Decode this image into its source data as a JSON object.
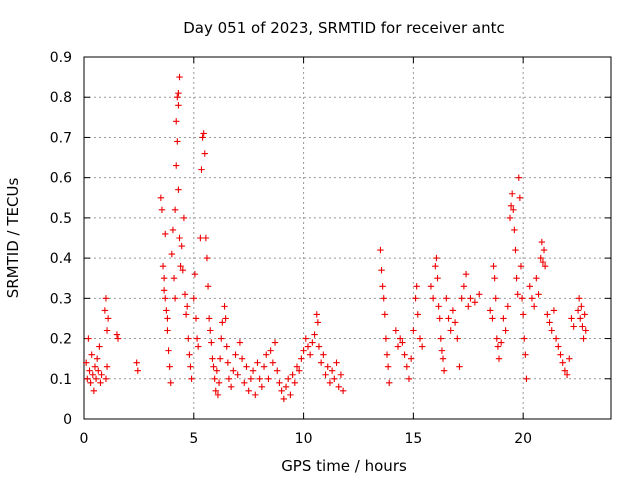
{
  "chart_data": {
    "type": "scatter",
    "title": "Day 051 of 2023, SRMTID for receiver antc",
    "xlabel": "GPS time / hours",
    "ylabel": "SRMTID / TECUs",
    "xlim": [
      0,
      24
    ],
    "ylim": [
      0,
      0.9
    ],
    "x_ticks": [
      0,
      5,
      10,
      15,
      20
    ],
    "y_ticks": [
      0,
      0.1,
      0.2,
      0.3,
      0.4,
      0.5,
      0.6,
      0.7,
      0.8,
      0.9
    ],
    "x_tick_labels": [
      "0",
      "5",
      "10",
      "15",
      "20"
    ],
    "y_tick_labels": [
      "0",
      "0.1",
      "0.2",
      "0.3",
      "0.4",
      "0.5",
      "0.6",
      "0.7",
      "0.8",
      "0.9"
    ],
    "grid": true,
    "marker": "+",
    "color": "#ee0000",
    "series": [
      {
        "name": "SRMTID",
        "points": [
          [
            0.1,
            0.14
          ],
          [
            0.15,
            0.1
          ],
          [
            0.2,
            0.2
          ],
          [
            0.25,
            0.12
          ],
          [
            0.3,
            0.09
          ],
          [
            0.35,
            0.16
          ],
          [
            0.4,
            0.11
          ],
          [
            0.45,
            0.07
          ],
          [
            0.5,
            0.13
          ],
          [
            0.55,
            0.1
          ],
          [
            0.6,
            0.15
          ],
          [
            0.65,
            0.12
          ],
          [
            0.7,
            0.18
          ],
          [
            0.75,
            0.09
          ],
          [
            0.8,
            0.11
          ],
          [
            0.95,
            0.27
          ],
          [
            1.0,
            0.3
          ],
          [
            1.05,
            0.22
          ],
          [
            1.1,
            0.25
          ],
          [
            1.0,
            0.1
          ],
          [
            1.05,
            0.13
          ],
          [
            1.5,
            0.21
          ],
          [
            1.55,
            0.2
          ],
          [
            2.4,
            0.14
          ],
          [
            2.45,
            0.12
          ],
          [
            3.5,
            0.55
          ],
          [
            3.55,
            0.52
          ],
          [
            3.6,
            0.38
          ],
          [
            3.65,
            0.35
          ],
          [
            3.7,
            0.3
          ],
          [
            3.75,
            0.27
          ],
          [
            3.8,
            0.22
          ],
          [
            3.85,
            0.17
          ],
          [
            3.9,
            0.13
          ],
          [
            3.95,
            0.09
          ],
          [
            3.7,
            0.46
          ],
          [
            3.65,
            0.32
          ],
          [
            3.8,
            0.25
          ],
          [
            4.0,
            0.41
          ],
          [
            4.05,
            0.47
          ],
          [
            4.1,
            0.35
          ],
          [
            4.15,
            0.3
          ],
          [
            4.2,
            0.74
          ],
          [
            4.25,
            0.8
          ],
          [
            4.3,
            0.78
          ],
          [
            4.35,
            0.85
          ],
          [
            4.3,
            0.81
          ],
          [
            4.25,
            0.69
          ],
          [
            4.2,
            0.63
          ],
          [
            4.15,
            0.52
          ],
          [
            4.3,
            0.57
          ],
          [
            4.35,
            0.45
          ],
          [
            4.4,
            0.38
          ],
          [
            4.45,
            0.43
          ],
          [
            4.5,
            0.37
          ],
          [
            4.55,
            0.5
          ],
          [
            4.6,
            0.31
          ],
          [
            4.65,
            0.26
          ],
          [
            4.7,
            0.28
          ],
          [
            4.75,
            0.2
          ],
          [
            4.8,
            0.16
          ],
          [
            4.85,
            0.13
          ],
          [
            4.9,
            0.1
          ],
          [
            5.0,
            0.3
          ],
          [
            5.05,
            0.36
          ],
          [
            5.1,
            0.25
          ],
          [
            5.15,
            0.2
          ],
          [
            5.2,
            0.18
          ],
          [
            5.3,
            0.45
          ],
          [
            5.35,
            0.62
          ],
          [
            5.4,
            0.7
          ],
          [
            5.45,
            0.71
          ],
          [
            5.5,
            0.66
          ],
          [
            5.55,
            0.45
          ],
          [
            5.6,
            0.4
          ],
          [
            5.65,
            0.33
          ],
          [
            5.7,
            0.25
          ],
          [
            5.75,
            0.22
          ],
          [
            5.8,
            0.19
          ],
          [
            5.85,
            0.15
          ],
          [
            5.9,
            0.13
          ],
          [
            5.95,
            0.1
          ],
          [
            6.0,
            0.07
          ],
          [
            6.05,
            0.12
          ],
          [
            6.1,
            0.06
          ],
          [
            6.15,
            0.09
          ],
          [
            6.2,
            0.15
          ],
          [
            6.25,
            0.2
          ],
          [
            6.3,
            0.24
          ],
          [
            6.4,
            0.28
          ],
          [
            6.45,
            0.25
          ],
          [
            6.5,
            0.18
          ],
          [
            6.55,
            0.14
          ],
          [
            6.6,
            0.1
          ],
          [
            6.7,
            0.08
          ],
          [
            6.8,
            0.12
          ],
          [
            6.9,
            0.16
          ],
          [
            7.0,
            0.11
          ],
          [
            7.1,
            0.19
          ],
          [
            7.2,
            0.15
          ],
          [
            7.3,
            0.09
          ],
          [
            7.4,
            0.13
          ],
          [
            7.5,
            0.07
          ],
          [
            7.6,
            0.1
          ],
          [
            7.7,
            0.12
          ],
          [
            7.8,
            0.06
          ],
          [
            7.9,
            0.14
          ],
          [
            8.0,
            0.1
          ],
          [
            8.1,
            0.08
          ],
          [
            8.2,
            0.13
          ],
          [
            8.3,
            0.16
          ],
          [
            8.4,
            0.1
          ],
          [
            8.5,
            0.17
          ],
          [
            8.6,
            0.14
          ],
          [
            8.7,
            0.19
          ],
          [
            8.8,
            0.12
          ],
          [
            8.9,
            0.09
          ],
          [
            9.0,
            0.07
          ],
          [
            9.1,
            0.05
          ],
          [
            9.2,
            0.08
          ],
          [
            9.3,
            0.1
          ],
          [
            9.4,
            0.06
          ],
          [
            9.5,
            0.11
          ],
          [
            9.6,
            0.09
          ],
          [
            9.7,
            0.13
          ],
          [
            9.8,
            0.12
          ],
          [
            9.9,
            0.15
          ],
          [
            10.0,
            0.17
          ],
          [
            10.1,
            0.2
          ],
          [
            10.2,
            0.18
          ],
          [
            10.3,
            0.16
          ],
          [
            10.4,
            0.19
          ],
          [
            10.5,
            0.21
          ],
          [
            10.6,
            0.26
          ],
          [
            10.65,
            0.24
          ],
          [
            10.7,
            0.18
          ],
          [
            10.8,
            0.14
          ],
          [
            10.9,
            0.16
          ],
          [
            11.0,
            0.11
          ],
          [
            11.1,
            0.13
          ],
          [
            11.2,
            0.09
          ],
          [
            11.3,
            0.12
          ],
          [
            11.4,
            0.1
          ],
          [
            11.5,
            0.14
          ],
          [
            11.6,
            0.08
          ],
          [
            11.7,
            0.11
          ],
          [
            11.8,
            0.07
          ],
          [
            13.5,
            0.42
          ],
          [
            13.55,
            0.37
          ],
          [
            13.6,
            0.33
          ],
          [
            13.65,
            0.3
          ],
          [
            13.7,
            0.26
          ],
          [
            13.75,
            0.2
          ],
          [
            13.8,
            0.16
          ],
          [
            13.85,
            0.13
          ],
          [
            13.9,
            0.09
          ],
          [
            14.2,
            0.22
          ],
          [
            14.3,
            0.18
          ],
          [
            14.4,
            0.2
          ],
          [
            14.5,
            0.19
          ],
          [
            14.6,
            0.16
          ],
          [
            14.7,
            0.13
          ],
          [
            14.8,
            0.1
          ],
          [
            14.9,
            0.15
          ],
          [
            15.0,
            0.22
          ],
          [
            15.1,
            0.3
          ],
          [
            15.15,
            0.33
          ],
          [
            15.2,
            0.26
          ],
          [
            15.3,
            0.2
          ],
          [
            15.4,
            0.18
          ],
          [
            15.8,
            0.33
          ],
          [
            15.9,
            0.3
          ],
          [
            16.0,
            0.38
          ],
          [
            16.05,
            0.4
          ],
          [
            16.1,
            0.35
          ],
          [
            16.15,
            0.28
          ],
          [
            16.2,
            0.25
          ],
          [
            16.25,
            0.2
          ],
          [
            16.3,
            0.17
          ],
          [
            16.35,
            0.15
          ],
          [
            16.4,
            0.12
          ],
          [
            16.5,
            0.3
          ],
          [
            16.6,
            0.25
          ],
          [
            16.7,
            0.22
          ],
          [
            16.8,
            0.27
          ],
          [
            16.9,
            0.24
          ],
          [
            17.0,
            0.2
          ],
          [
            17.1,
            0.13
          ],
          [
            17.2,
            0.3
          ],
          [
            17.3,
            0.33
          ],
          [
            17.4,
            0.36
          ],
          [
            17.5,
            0.28
          ],
          [
            17.6,
            0.3
          ],
          [
            17.8,
            0.29
          ],
          [
            18.0,
            0.31
          ],
          [
            18.5,
            0.27
          ],
          [
            18.6,
            0.25
          ],
          [
            18.65,
            0.38
          ],
          [
            18.7,
            0.35
          ],
          [
            18.75,
            0.3
          ],
          [
            18.8,
            0.2
          ],
          [
            18.85,
            0.18
          ],
          [
            18.9,
            0.15
          ],
          [
            19.0,
            0.19
          ],
          [
            19.1,
            0.25
          ],
          [
            19.2,
            0.22
          ],
          [
            19.3,
            0.28
          ],
          [
            19.4,
            0.5
          ],
          [
            19.45,
            0.53
          ],
          [
            19.5,
            0.56
          ],
          [
            19.55,
            0.52
          ],
          [
            19.6,
            0.47
          ],
          [
            19.65,
            0.42
          ],
          [
            19.7,
            0.35
          ],
          [
            19.75,
            0.31
          ],
          [
            19.8,
            0.6
          ],
          [
            19.85,
            0.55
          ],
          [
            19.9,
            0.38
          ],
          [
            19.95,
            0.3
          ],
          [
            20.0,
            0.26
          ],
          [
            20.05,
            0.2
          ],
          [
            20.1,
            0.16
          ],
          [
            20.15,
            0.1
          ],
          [
            20.3,
            0.33
          ],
          [
            20.4,
            0.3
          ],
          [
            20.5,
            0.28
          ],
          [
            20.6,
            0.35
          ],
          [
            20.7,
            0.31
          ],
          [
            20.8,
            0.4
          ],
          [
            20.85,
            0.44
          ],
          [
            20.9,
            0.39
          ],
          [
            20.95,
            0.42
          ],
          [
            21.0,
            0.38
          ],
          [
            21.1,
            0.26
          ],
          [
            21.2,
            0.24
          ],
          [
            21.3,
            0.22
          ],
          [
            21.4,
            0.27
          ],
          [
            21.5,
            0.2
          ],
          [
            21.6,
            0.18
          ],
          [
            21.7,
            0.16
          ],
          [
            21.8,
            0.14
          ],
          [
            21.9,
            0.12
          ],
          [
            22.0,
            0.11
          ],
          [
            22.1,
            0.15
          ],
          [
            22.2,
            0.25
          ],
          [
            22.3,
            0.23
          ],
          [
            22.5,
            0.27
          ],
          [
            22.55,
            0.3
          ],
          [
            22.6,
            0.25
          ],
          [
            22.65,
            0.28
          ],
          [
            22.7,
            0.23
          ],
          [
            22.75,
            0.2
          ],
          [
            22.8,
            0.26
          ],
          [
            22.85,
            0.22
          ]
        ]
      }
    ]
  }
}
